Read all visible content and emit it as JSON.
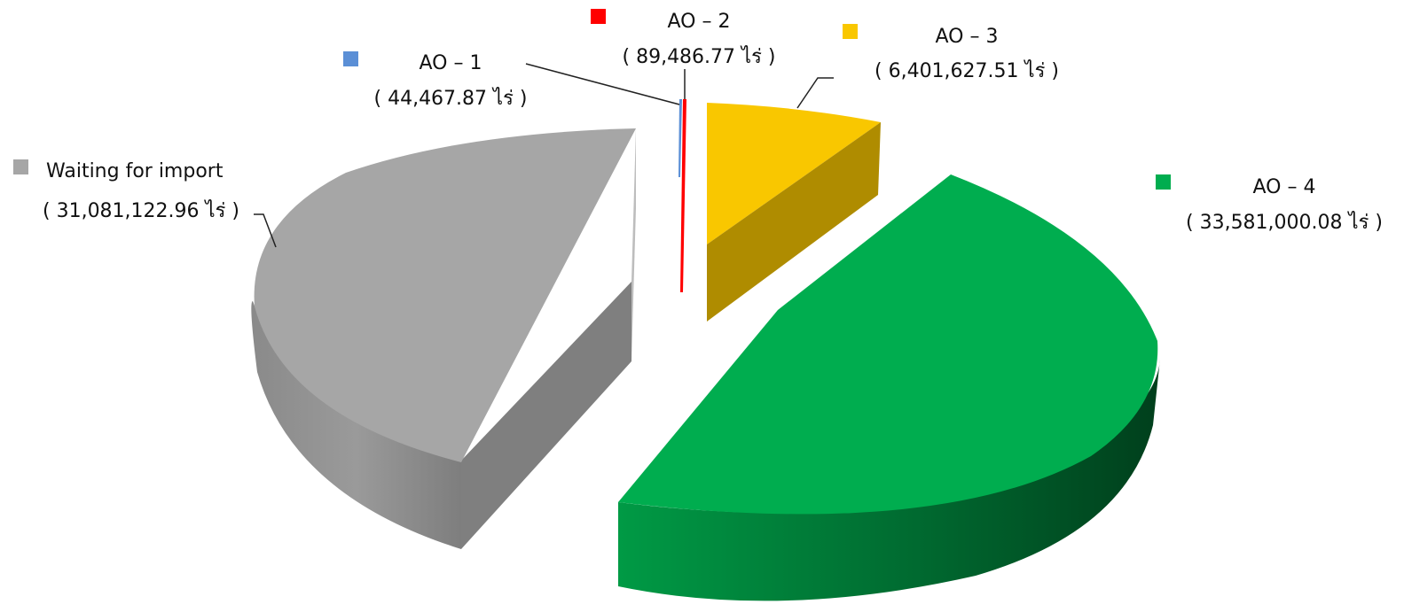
{
  "chart_data": {
    "type": "pie",
    "title": "",
    "unit": "ไร่",
    "slices": [
      {
        "name": "AO – 1",
        "value": 44467.87,
        "value_label": "( 44,467.87 ไร่ )",
        "color": "#5b8fd6"
      },
      {
        "name": "AO – 2",
        "value": 89486.77,
        "value_label": "( 89,486.77 ไร่ )",
        "color": "#ff0000"
      },
      {
        "name": "AO – 3",
        "value": 6401627.51,
        "value_label": "( 6,401,627.51 ไร่ )",
        "color": "#f9c700"
      },
      {
        "name": "AO – 4",
        "value": 33581000.08,
        "value_label": "( 33,581,000.08 ไร่ )",
        "color": "#00ad4f"
      },
      {
        "name": "Waiting for import",
        "value": 31081122.96,
        "value_label": "( 31,081,122.96 ไร่ )",
        "color": "#a6a6a6"
      }
    ],
    "style": "3d-exploded",
    "legend": "inline-labels"
  }
}
